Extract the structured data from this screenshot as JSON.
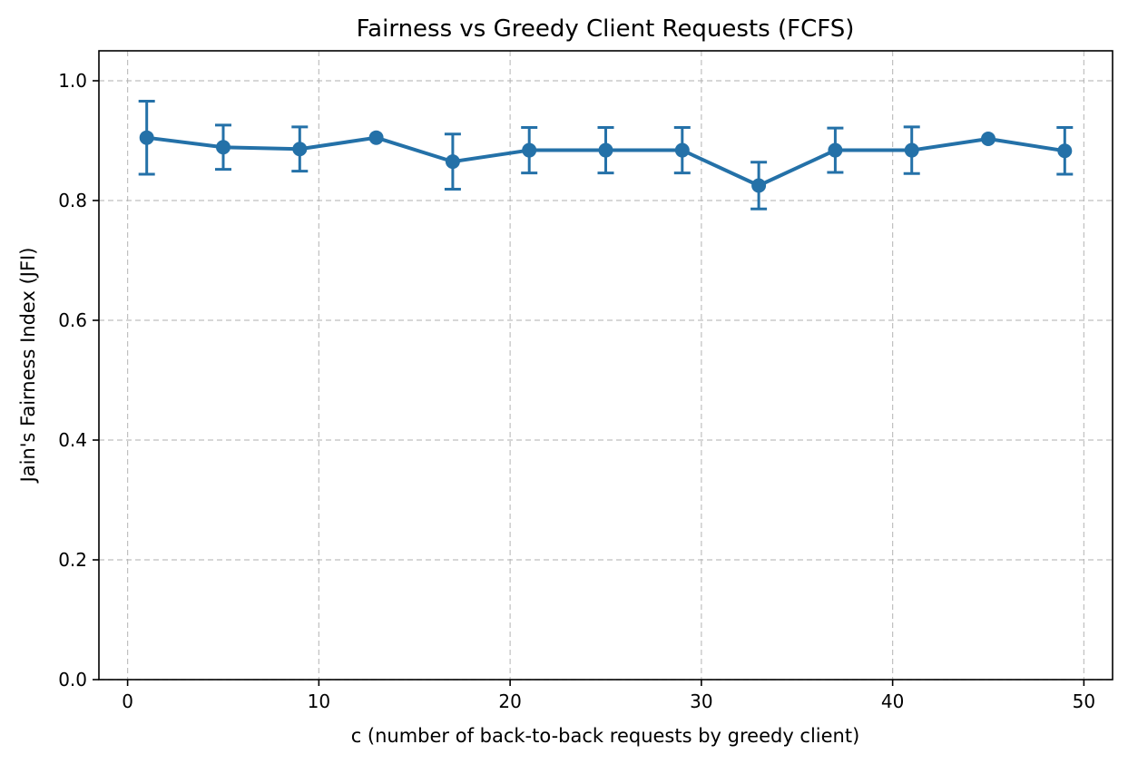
{
  "chart_data": {
    "type": "line",
    "title": "Fairness vs Greedy Client Requests (FCFS)",
    "xlabel": "c (number of back-to-back requests by greedy client)",
    "ylabel": "Jain's Fairness Index (JFI)",
    "xlim": [
      -1.5,
      51.5
    ],
    "ylim": [
      0.0,
      1.05
    ],
    "xticks": [
      0,
      10,
      20,
      30,
      40,
      50
    ],
    "xtick_labels": [
      "0",
      "10",
      "20",
      "30",
      "40",
      "50"
    ],
    "yticks": [
      0.0,
      0.2,
      0.4,
      0.6,
      0.8,
      1.0
    ],
    "ytick_labels": [
      "0.0",
      "0.2",
      "0.4",
      "0.6",
      "0.8",
      "1.0"
    ],
    "grid": true,
    "series": [
      {
        "color": "#2471a8",
        "x": [
          1,
          5,
          9,
          13,
          17,
          21,
          25,
          29,
          33,
          37,
          41,
          45,
          49
        ],
        "y": [
          0.905,
          0.889,
          0.886,
          0.905,
          0.865,
          0.884,
          0.884,
          0.884,
          0.825,
          0.884,
          0.884,
          0.903,
          0.883
        ],
        "yerr": [
          0.061,
          0.037,
          0.037,
          0.0,
          0.046,
          0.038,
          0.038,
          0.038,
          0.039,
          0.037,
          0.039,
          0.0,
          0.039
        ]
      }
    ]
  }
}
